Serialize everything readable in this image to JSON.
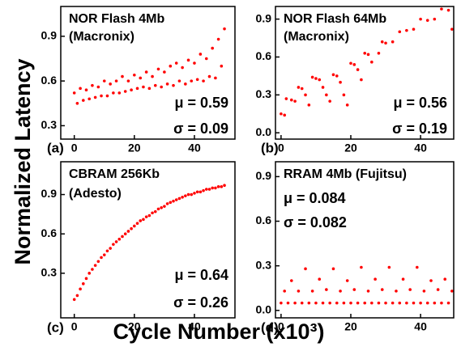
{
  "figure": {
    "ylabel": "Normalized Latency",
    "xlabel": "Cycle Number (x10³)"
  },
  "chart_data": [
    {
      "type": "scatter",
      "panel_label": "(a)",
      "annotations": [
        "NOR Flash 4Mb",
        "(Macronix)",
        "μ = 0.59",
        "σ = 0.09"
      ],
      "color": "#ff0000",
      "xlim": [
        -4.5,
        53.5
      ],
      "ylim": [
        0.21,
        1.1
      ],
      "xticks": [
        0,
        20,
        40
      ],
      "yticks": [
        0.3,
        0.6,
        0.9
      ],
      "x": [
        0,
        1,
        2,
        3,
        4,
        5,
        6,
        7,
        8,
        9,
        10,
        11,
        12,
        13,
        14,
        15,
        16,
        17,
        18,
        19,
        20,
        21,
        22,
        23,
        24,
        25,
        26,
        27,
        28,
        29,
        30,
        31,
        32,
        33,
        34,
        35,
        36,
        37,
        38,
        39,
        40,
        41,
        42,
        43,
        44,
        45,
        46,
        47,
        48,
        49,
        50
      ],
      "values": [
        0.52,
        0.45,
        0.55,
        0.47,
        0.54,
        0.48,
        0.57,
        0.49,
        0.56,
        0.5,
        0.6,
        0.5,
        0.58,
        0.52,
        0.6,
        0.52,
        0.63,
        0.53,
        0.6,
        0.54,
        0.64,
        0.55,
        0.62,
        0.56,
        0.66,
        0.55,
        0.63,
        0.57,
        0.68,
        0.56,
        0.66,
        0.58,
        0.7,
        0.57,
        0.72,
        0.6,
        0.69,
        0.58,
        0.74,
        0.6,
        0.72,
        0.61,
        0.78,
        0.6,
        0.75,
        0.63,
        0.82,
        0.62,
        0.88,
        0.7,
        0.95
      ]
    },
    {
      "type": "scatter",
      "panel_label": "(b)",
      "annotations": [
        "NOR Flash 64Mb",
        "(Macronix)",
        "μ = 0.56",
        "σ = 0.19"
      ],
      "color": "#ff0000",
      "xlim": [
        -1.6,
        49.5
      ],
      "ylim": [
        -0.05,
        1.0
      ],
      "xticks": [
        0,
        20,
        40
      ],
      "yticks": [
        {
          "value": 0,
          "label": "0.0"
        },
        0.3,
        0.6,
        0.9
      ],
      "x": [
        0,
        1,
        1.5,
        3,
        4,
        5,
        6,
        7,
        8,
        9,
        10,
        11,
        12,
        13,
        14,
        15,
        16,
        17,
        18,
        19,
        20,
        21,
        22,
        23,
        24,
        25,
        26,
        28,
        29,
        30,
        32,
        34,
        36,
        38,
        40,
        42,
        44,
        46,
        48,
        49
      ],
      "values": [
        0.15,
        0.14,
        0.27,
        0.26,
        0.25,
        0.36,
        0.35,
        0.3,
        0.22,
        0.44,
        0.43,
        0.42,
        0.36,
        0.3,
        0.25,
        0.46,
        0.45,
        0.4,
        0.3,
        0.22,
        0.55,
        0.54,
        0.5,
        0.42,
        0.63,
        0.62,
        0.56,
        0.63,
        0.72,
        0.71,
        0.72,
        0.8,
        0.81,
        0.82,
        0.9,
        0.89,
        0.9,
        0.98,
        0.97,
        0.82
      ]
    },
    {
      "type": "scatter",
      "panel_label": "(c)",
      "annotations": [
        "CBRAM 256Kb",
        "(Adesto)",
        "μ = 0.64",
        "σ = 0.26"
      ],
      "color": "#ff0000",
      "xlim": [
        -4.5,
        53.5
      ],
      "ylim": [
        -0.04,
        1.15
      ],
      "xticks": [
        0,
        20,
        40
      ],
      "yticks": [
        0.3,
        0.6,
        0.9
      ],
      "x": [
        0,
        1,
        2,
        3,
        4,
        5,
        6,
        7,
        8,
        9,
        10,
        11,
        12,
        13,
        14,
        15,
        16,
        17,
        18,
        19,
        20,
        21,
        22,
        23,
        24,
        25,
        26,
        27,
        28,
        29,
        30,
        31,
        32,
        33,
        34,
        35,
        36,
        37,
        38,
        39,
        40,
        41,
        42,
        43,
        44,
        45,
        46,
        47,
        48,
        49,
        50
      ],
      "values": [
        0.1,
        0.13,
        0.18,
        0.22,
        0.26,
        0.3,
        0.33,
        0.36,
        0.39,
        0.42,
        0.44,
        0.47,
        0.49,
        0.52,
        0.54,
        0.56,
        0.58,
        0.6,
        0.62,
        0.64,
        0.66,
        0.68,
        0.7,
        0.71,
        0.73,
        0.74,
        0.76,
        0.77,
        0.79,
        0.8,
        0.81,
        0.83,
        0.84,
        0.85,
        0.86,
        0.87,
        0.88,
        0.89,
        0.9,
        0.9,
        0.91,
        0.92,
        0.92,
        0.93,
        0.94,
        0.94,
        0.95,
        0.95,
        0.96,
        0.96,
        0.97
      ]
    },
    {
      "type": "scatter",
      "panel_label": "(d)",
      "annotations": [
        "RRAM 4Mb (Fujitsu)",
        "μ = 0.084",
        "σ = 0.082"
      ],
      "color": "#ff0000",
      "xlim": [
        -1.6,
        49.5
      ],
      "ylim": [
        -0.05,
        1.0
      ],
      "xticks": [
        0,
        20,
        40
      ],
      "yticks": [
        {
          "value": 0,
          "label": "0.0"
        },
        0.3,
        0.6,
        0.9
      ],
      "x": [
        0,
        2,
        4,
        6,
        8,
        10,
        12,
        14,
        16,
        18,
        20,
        22,
        24,
        26,
        28,
        30,
        32,
        34,
        36,
        38,
        40,
        42,
        44,
        46,
        48,
        1,
        5,
        9,
        13,
        17,
        21,
        25,
        29,
        33,
        37,
        41,
        45,
        49,
        3,
        11,
        19,
        27,
        35,
        43,
        47,
        7,
        15,
        23,
        31,
        39
      ],
      "values": [
        0.05,
        0.05,
        0.05,
        0.05,
        0.05,
        0.05,
        0.05,
        0.05,
        0.05,
        0.05,
        0.05,
        0.05,
        0.05,
        0.05,
        0.05,
        0.05,
        0.05,
        0.05,
        0.05,
        0.05,
        0.05,
        0.05,
        0.05,
        0.05,
        0.05,
        0.13,
        0.13,
        0.13,
        0.14,
        0.13,
        0.14,
        0.13,
        0.14,
        0.13,
        0.14,
        0.13,
        0.14,
        0.13,
        0.2,
        0.21,
        0.2,
        0.21,
        0.21,
        0.2,
        0.21,
        0.28,
        0.28,
        0.29,
        0.29,
        0.29
      ]
    }
  ]
}
